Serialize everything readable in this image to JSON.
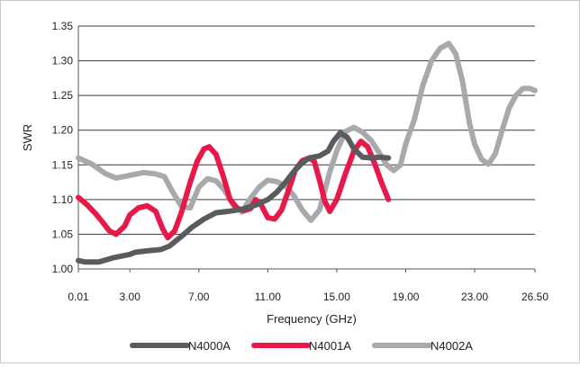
{
  "chart_data": {
    "type": "line",
    "title": "",
    "xlabel": "Frequency (GHz)",
    "ylabel": "SWR",
    "xlim": [
      0.01,
      26.5
    ],
    "ylim": [
      1.0,
      1.35
    ],
    "xticks": [
      0.01,
      3.0,
      7.0,
      11.0,
      15.0,
      19.0,
      23.0,
      26.5
    ],
    "xtick_labels": [
      "0.01",
      "3.00",
      "7.00",
      "11.00",
      "15.00",
      "19.00",
      "23.00",
      "26.50"
    ],
    "yticks": [
      1.0,
      1.05,
      1.1,
      1.15,
      1.2,
      1.25,
      1.3,
      1.35
    ],
    "ytick_labels": [
      "1.00",
      "1.05",
      "1.10",
      "1.15",
      "1.20",
      "1.25",
      "1.30",
      "1.35"
    ],
    "grid": "horizontal",
    "legend_position": "bottom",
    "series": [
      {
        "name": "N4000A",
        "color": "#595b5e",
        "points": [
          [
            0.01,
            1.012
          ],
          [
            0.4,
            1.01
          ],
          [
            1.2,
            1.01
          ],
          [
            2.0,
            1.016
          ],
          [
            3.0,
            1.021
          ],
          [
            3.3,
            1.024
          ],
          [
            4.0,
            1.026
          ],
          [
            4.8,
            1.028
          ],
          [
            5.3,
            1.033
          ],
          [
            6.0,
            1.047
          ],
          [
            6.6,
            1.06
          ],
          [
            7.3,
            1.072
          ],
          [
            8.0,
            1.081
          ],
          [
            8.7,
            1.083
          ],
          [
            9.5,
            1.086
          ],
          [
            10.3,
            1.092
          ],
          [
            11.0,
            1.1
          ],
          [
            11.5,
            1.11
          ],
          [
            12.0,
            1.124
          ],
          [
            12.5,
            1.14
          ],
          [
            13.0,
            1.153
          ],
          [
            13.4,
            1.16
          ],
          [
            14.0,
            1.163
          ],
          [
            14.5,
            1.17
          ],
          [
            14.8,
            1.184
          ],
          [
            15.2,
            1.196
          ],
          [
            15.6,
            1.19
          ],
          [
            16.0,
            1.173
          ],
          [
            16.5,
            1.161
          ],
          [
            17.0,
            1.16
          ],
          [
            17.5,
            1.161
          ],
          [
            18.0,
            1.16
          ]
        ]
      },
      {
        "name": "N4001A",
        "color": "#e8194a",
        "points": [
          [
            0.01,
            1.103
          ],
          [
            0.5,
            1.093
          ],
          [
            1.0,
            1.08
          ],
          [
            1.4,
            1.068
          ],
          [
            1.8,
            1.055
          ],
          [
            2.2,
            1.05
          ],
          [
            2.7,
            1.062
          ],
          [
            3.0,
            1.078
          ],
          [
            3.5,
            1.088
          ],
          [
            4.0,
            1.091
          ],
          [
            4.5,
            1.083
          ],
          [
            4.9,
            1.058
          ],
          [
            5.2,
            1.045
          ],
          [
            5.6,
            1.055
          ],
          [
            6.0,
            1.082
          ],
          [
            6.5,
            1.125
          ],
          [
            6.9,
            1.155
          ],
          [
            7.3,
            1.173
          ],
          [
            7.6,
            1.176
          ],
          [
            8.0,
            1.165
          ],
          [
            8.4,
            1.135
          ],
          [
            8.8,
            1.101
          ],
          [
            9.2,
            1.088
          ],
          [
            9.6,
            1.084
          ],
          [
            10.0,
            1.087
          ],
          [
            10.3,
            1.1
          ],
          [
            10.6,
            1.093
          ],
          [
            11.0,
            1.074
          ],
          [
            11.4,
            1.072
          ],
          [
            11.8,
            1.085
          ],
          [
            12.2,
            1.113
          ],
          [
            12.6,
            1.143
          ],
          [
            13.0,
            1.156
          ],
          [
            13.4,
            1.16
          ],
          [
            13.7,
            1.155
          ],
          [
            14.0,
            1.128
          ],
          [
            14.3,
            1.098
          ],
          [
            14.6,
            1.083
          ],
          [
            15.0,
            1.1
          ],
          [
            15.5,
            1.137
          ],
          [
            16.0,
            1.17
          ],
          [
            16.4,
            1.184
          ],
          [
            16.8,
            1.176
          ],
          [
            17.2,
            1.152
          ],
          [
            17.6,
            1.124
          ],
          [
            18.0,
            1.1
          ]
        ]
      },
      {
        "name": "N4002A",
        "color": "#a7a9ac",
        "points": [
          [
            0.01,
            1.16
          ],
          [
            0.8,
            1.151
          ],
          [
            1.6,
            1.137
          ],
          [
            2.2,
            1.131
          ],
          [
            3.0,
            1.135
          ],
          [
            3.8,
            1.139
          ],
          [
            4.5,
            1.137
          ],
          [
            5.0,
            1.133
          ],
          [
            5.5,
            1.11
          ],
          [
            6.0,
            1.09
          ],
          [
            6.5,
            1.088
          ],
          [
            7.0,
            1.118
          ],
          [
            7.5,
            1.13
          ],
          [
            8.0,
            1.127
          ],
          [
            8.5,
            1.113
          ],
          [
            9.0,
            1.092
          ],
          [
            9.5,
            1.082
          ],
          [
            10.0,
            1.102
          ],
          [
            10.5,
            1.118
          ],
          [
            11.0,
            1.128
          ],
          [
            11.5,
            1.126
          ],
          [
            12.0,
            1.12
          ],
          [
            12.5,
            1.106
          ],
          [
            13.0,
            1.085
          ],
          [
            13.5,
            1.07
          ],
          [
            14.0,
            1.085
          ],
          [
            14.6,
            1.14
          ],
          [
            15.0,
            1.17
          ],
          [
            15.5,
            1.198
          ],
          [
            16.0,
            1.204
          ],
          [
            16.5,
            1.197
          ],
          [
            17.0,
            1.185
          ],
          [
            17.5,
            1.166
          ],
          [
            17.9,
            1.15
          ],
          [
            18.3,
            1.142
          ],
          [
            18.7,
            1.15
          ],
          [
            19.0,
            1.18
          ],
          [
            19.5,
            1.215
          ],
          [
            20.0,
            1.265
          ],
          [
            20.5,
            1.3
          ],
          [
            21.0,
            1.318
          ],
          [
            21.5,
            1.325
          ],
          [
            21.9,
            1.31
          ],
          [
            22.3,
            1.27
          ],
          [
            22.7,
            1.21
          ],
          [
            23.0,
            1.18
          ],
          [
            23.4,
            1.158
          ],
          [
            23.8,
            1.151
          ],
          [
            24.2,
            1.166
          ],
          [
            24.6,
            1.2
          ],
          [
            25.0,
            1.232
          ],
          [
            25.4,
            1.25
          ],
          [
            25.8,
            1.26
          ],
          [
            26.2,
            1.26
          ],
          [
            26.5,
            1.257
          ]
        ]
      }
    ]
  }
}
